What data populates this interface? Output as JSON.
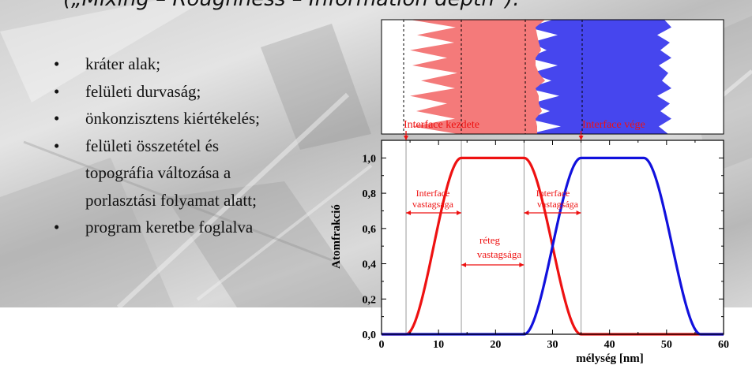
{
  "header": {
    "text": "(„Mixing – Roughness – Information depth”)."
  },
  "bullets": [
    {
      "text": "kráter alak;",
      "bullet": true
    },
    {
      "text": "felületi durvaság;",
      "bullet": true
    },
    {
      "text": "önkonzisztens kiértékelés;",
      "bullet": true
    },
    {
      "text": "felületi összetétel és",
      "bullet": true
    },
    {
      "text": "topográfia változása a",
      "bullet": false
    },
    {
      "text": "porlasztási folyamat alatt;",
      "bullet": false
    },
    {
      "text": "program keretbe foglalva",
      "bullet": true
    }
  ],
  "bullet_glyph": "•",
  "colors": {
    "red": "#ee1111",
    "blue": "#1111dd",
    "schematic_red": "#f47a7a",
    "schematic_blue": "#4646ee"
  },
  "chart_data": {
    "type": "line",
    "xlabel": "mélység [nm]",
    "ylabel": "Atomfrakció",
    "xlim": [
      0,
      60
    ],
    "ylim": [
      0,
      1.1
    ],
    "x_ticks": [
      0,
      10,
      20,
      30,
      40,
      50,
      60
    ],
    "y_ticks": [
      "0,0",
      "0,2",
      "0,4",
      "0,6",
      "0,8",
      "1,0"
    ],
    "series": [
      {
        "color": "#ee1111",
        "shape": "plateau",
        "rise_start": 4.3,
        "rise_end": 14,
        "plateau_end": 25,
        "fall_end": 35
      },
      {
        "color": "#1111dd",
        "shape": "plateau",
        "rise_start": 25,
        "rise_end": 35,
        "plateau_end": 46,
        "fall_end": 56
      }
    ],
    "vlines": [
      4.3,
      14,
      25,
      35
    ],
    "annotations": {
      "interface_start": "Interface kezdete",
      "interface_end": "Interface vége",
      "interface_thickness_line1": "Interface",
      "interface_thickness_line2": "vastagsága",
      "layer_line1": "réteg",
      "layer_line2": "vastagsága"
    },
    "grid": false
  }
}
